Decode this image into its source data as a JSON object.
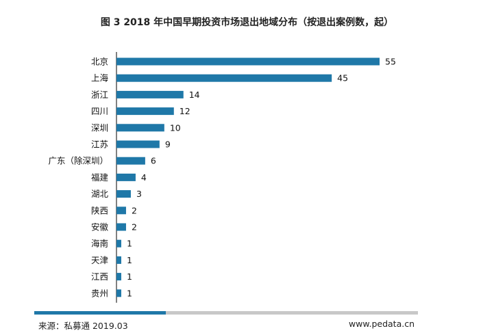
{
  "chart_data": {
    "type": "bar",
    "orientation": "horizontal",
    "title": "图 3 2018 年中国早期投资市场退出地域分布（按退出案例数，起）",
    "categories": [
      "北京",
      "上海",
      "浙江",
      "四川",
      "深圳",
      "江苏",
      "广东（除深圳）",
      "福建",
      "湖北",
      "陕西",
      "安徽",
      "海南",
      "天津",
      "江西",
      "贵州"
    ],
    "values": [
      55,
      45,
      14,
      12,
      10,
      9,
      6,
      4,
      3,
      2,
      2,
      1,
      1,
      1,
      1
    ],
    "xlim": [
      0,
      55
    ],
    "grid": false,
    "legend": "none",
    "bar_color": "#1f78a8"
  },
  "footer": {
    "source": "来源：私募通 2019.03",
    "website": "www.pedata.cn",
    "accent_color": "#1f78a8",
    "neutral_color": "#c8c8c8"
  }
}
